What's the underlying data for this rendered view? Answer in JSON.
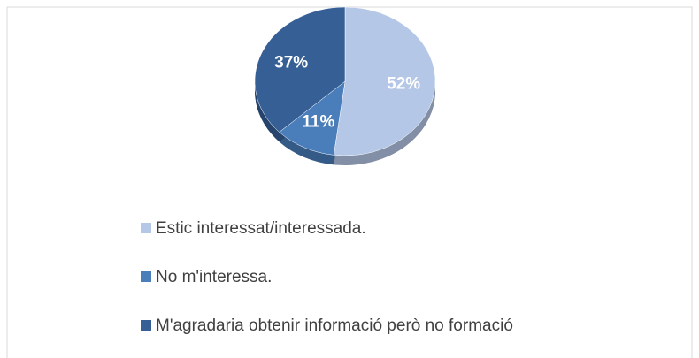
{
  "chart_data": {
    "type": "pie",
    "categories": [
      "Estic interessat/interessada.",
      "No m'interessa.",
      "M'agradaria obtenir informació però no formació"
    ],
    "values": [
      52,
      11,
      37
    ],
    "value_labels": [
      "52%",
      "11%",
      "37%"
    ],
    "colors": [
      "#b4c7e7",
      "#4a7ebb",
      "#365f96"
    ],
    "legend": "bottom"
  }
}
